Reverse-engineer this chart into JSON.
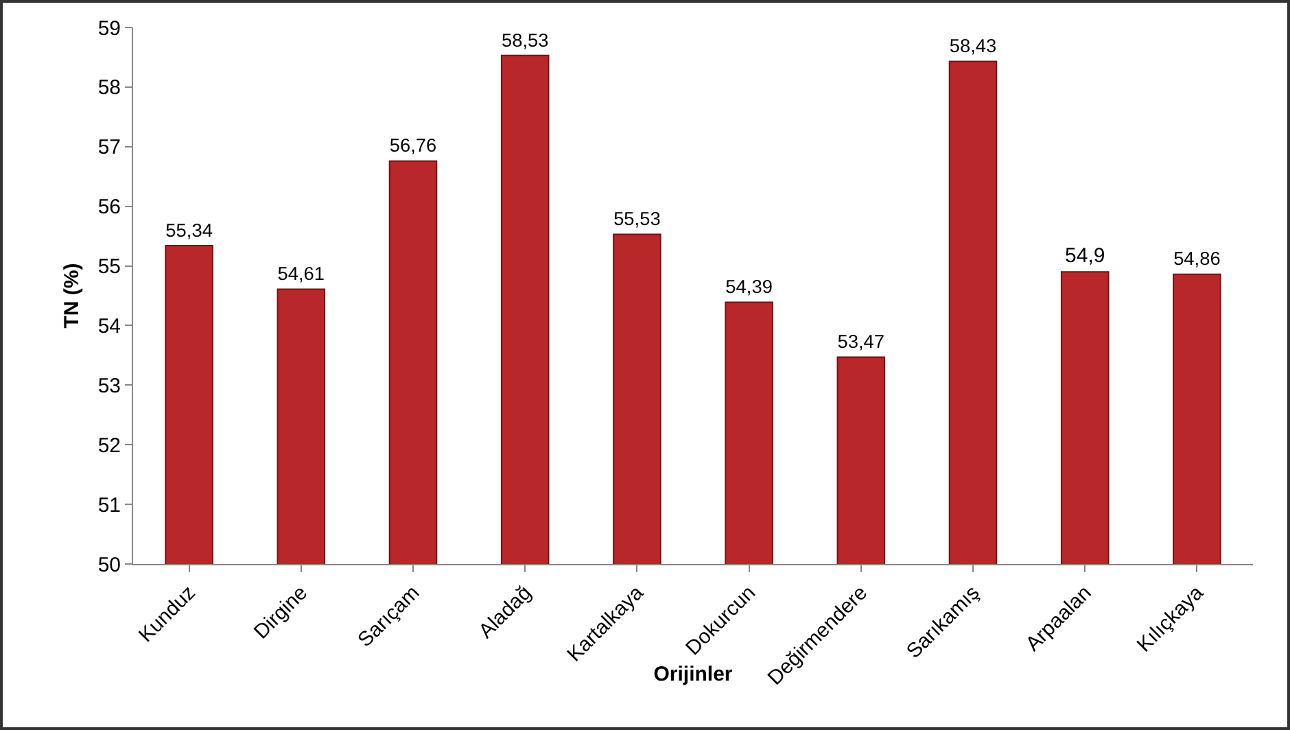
{
  "chart_data": {
    "type": "bar",
    "xlabel": "Orijinler",
    "ylabel": "TN (%)",
    "categories": [
      "Kunduz",
      "Dirgine",
      "Sarıçam",
      "Aladağ",
      "Kartalkaya",
      "Dokurcun",
      "Değirmendere",
      "Sarıkamış",
      "Arpaalan",
      "Kılıçkaya"
    ],
    "values": [
      55.34,
      54.61,
      56.76,
      58.53,
      55.53,
      54.39,
      53.47,
      58.43,
      54.9,
      54.86
    ],
    "value_labels": [
      "55,34",
      "54,61",
      "56,76",
      "58,53",
      "55,53",
      "54,39",
      "53,47",
      "58,43",
      "54,9",
      "54,86"
    ],
    "color": "#b8282a",
    "ylim": [
      50,
      59
    ],
    "yticks": [
      50,
      51,
      52,
      53,
      54,
      55,
      56,
      57,
      58,
      59
    ],
    "grid": false,
    "legend": false
  }
}
